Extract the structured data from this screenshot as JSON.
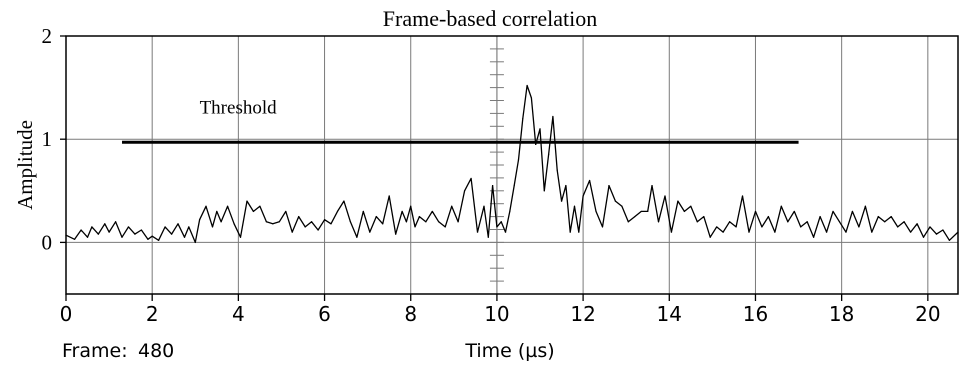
{
  "chart_data": {
    "type": "line",
    "title": "Frame-based correlation",
    "xlabel": "Time (µs)",
    "ylabel": "Amplitude",
    "frame_label": "Frame:",
    "frame_value": "480",
    "xlim": [
      0,
      20.7
    ],
    "ylim": [
      -0.5,
      2
    ],
    "x_ticks": [
      0,
      2,
      4,
      6,
      8,
      10,
      12,
      14,
      16,
      18,
      20
    ],
    "y_ticks": [
      0,
      1,
      2
    ],
    "grid": true,
    "threshold": {
      "label": "Threshold",
      "value": 0.97,
      "x_start": 1.3,
      "x_end": 17.0
    },
    "center_marker_x": 10,
    "series": [
      {
        "x": [
          0,
          0.2,
          0.35,
          0.5,
          0.6,
          0.75,
          0.9,
          1.0,
          1.15,
          1.3,
          1.45,
          1.6,
          1.75,
          1.9,
          2.0,
          2.15,
          2.3,
          2.45,
          2.6,
          2.75,
          2.85,
          3.0,
          3.1,
          3.25,
          3.4,
          3.5,
          3.6,
          3.75,
          3.9,
          4.05,
          4.2,
          4.35,
          4.5,
          4.65,
          4.8,
          4.95,
          5.1,
          5.25,
          5.4,
          5.55,
          5.7,
          5.85,
          6.0,
          6.15,
          6.3,
          6.45,
          6.6,
          6.75,
          6.9,
          7.05,
          7.2,
          7.35,
          7.5,
          7.65,
          7.8,
          7.9,
          8.0,
          8.1,
          8.2,
          8.35,
          8.5,
          8.65,
          8.8,
          8.95,
          9.1,
          9.25,
          9.4,
          9.55,
          9.7,
          9.8,
          9.9,
          10.0,
          10.1,
          10.2,
          10.3,
          10.4,
          10.5,
          10.6,
          10.7,
          10.8,
          10.9,
          11.0,
          11.1,
          11.2,
          11.3,
          11.4,
          11.5,
          11.6,
          11.7,
          11.8,
          11.9,
          12.0,
          12.15,
          12.3,
          12.45,
          12.6,
          12.75,
          12.9,
          13.05,
          13.2,
          13.35,
          13.5,
          13.6,
          13.75,
          13.9,
          14.05,
          14.2,
          14.35,
          14.5,
          14.65,
          14.8,
          14.95,
          15.1,
          15.25,
          15.4,
          15.55,
          15.7,
          15.85,
          16.0,
          16.15,
          16.3,
          16.45,
          16.6,
          16.75,
          16.9,
          17.05,
          17.2,
          17.35,
          17.5,
          17.65,
          17.8,
          17.95,
          18.1,
          18.25,
          18.4,
          18.55,
          18.7,
          18.85,
          19.0,
          19.15,
          19.3,
          19.45,
          19.6,
          19.75,
          19.9,
          20.05,
          20.2,
          20.35,
          20.5,
          20.7
        ],
        "y": [
          0.07,
          0.03,
          0.12,
          0.05,
          0.15,
          0.08,
          0.18,
          0.1,
          0.2,
          0.05,
          0.15,
          0.08,
          0.12,
          0.03,
          0.06,
          0.02,
          0.15,
          0.08,
          0.18,
          0.05,
          0.15,
          0.0,
          0.22,
          0.35,
          0.15,
          0.3,
          0.2,
          0.35,
          0.18,
          0.05,
          0.4,
          0.3,
          0.35,
          0.2,
          0.18,
          0.2,
          0.3,
          0.1,
          0.25,
          0.15,
          0.2,
          0.12,
          0.22,
          0.18,
          0.3,
          0.4,
          0.2,
          0.05,
          0.3,
          0.1,
          0.25,
          0.18,
          0.45,
          0.08,
          0.3,
          0.2,
          0.35,
          0.15,
          0.25,
          0.2,
          0.3,
          0.2,
          0.15,
          0.35,
          0.2,
          0.5,
          0.62,
          0.1,
          0.35,
          0.05,
          0.55,
          0.15,
          0.2,
          0.1,
          0.3,
          0.55,
          0.8,
          1.2,
          1.52,
          1.4,
          0.95,
          1.1,
          0.5,
          0.85,
          1.22,
          0.7,
          0.4,
          0.55,
          0.1,
          0.35,
          0.1,
          0.45,
          0.6,
          0.3,
          0.15,
          0.55,
          0.4,
          0.35,
          0.2,
          0.25,
          0.3,
          0.3,
          0.55,
          0.2,
          0.45,
          0.1,
          0.4,
          0.3,
          0.35,
          0.2,
          0.25,
          0.05,
          0.15,
          0.1,
          0.2,
          0.15,
          0.45,
          0.1,
          0.3,
          0.15,
          0.25,
          0.1,
          0.35,
          0.2,
          0.3,
          0.15,
          0.2,
          0.05,
          0.25,
          0.1,
          0.3,
          0.2,
          0.1,
          0.3,
          0.15,
          0.35,
          0.1,
          0.25,
          0.2,
          0.25,
          0.15,
          0.2,
          0.1,
          0.18,
          0.05,
          0.15,
          0.08,
          0.12,
          0.02,
          0.1
        ]
      }
    ]
  }
}
